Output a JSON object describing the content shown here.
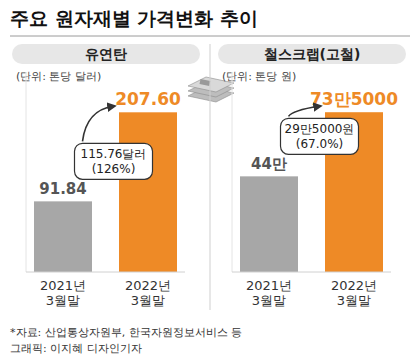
{
  "title": "주요 원자재별 가격변화 추이",
  "chart_data": [
    {
      "type": "bar",
      "title": "유연탄",
      "subtitle": "(단위: 톤당 달러)",
      "categories": [
        "2021년 3월말",
        "2022년 3월말"
      ],
      "values": [
        91.84,
        207.6
      ],
      "value_labels": [
        "91.84",
        "207.60"
      ],
      "colors": [
        "#a7a7a7",
        "#ee8a26"
      ],
      "ylim": [
        0,
        260
      ],
      "tick_labels": false,
      "grid": false,
      "data_labels": true,
      "annotation": [
        "115.76달러",
        "(126%)"
      ]
    },
    {
      "type": "bar",
      "title": "철스크랩(고철)",
      "subtitle": "(단위: 톤당 원)",
      "categories": [
        "2021년 3월말",
        "2022년 3월말"
      ],
      "values": [
        440000,
        735000
      ],
      "value_labels": [
        "44만",
        "73만5000"
      ],
      "colors": [
        "#a7a7a7",
        "#ee8a26"
      ],
      "ylim": [
        0,
        920000
      ],
      "tick_labels": false,
      "grid": false,
      "data_labels": true,
      "annotation": [
        "29만5000원",
        "(67.0%)"
      ]
    }
  ],
  "footer": {
    "source": "*자료: 산업통상자원부, 한국자원정보서비스 등",
    "credit": "그래픽: 이지혜 디자인기자"
  }
}
